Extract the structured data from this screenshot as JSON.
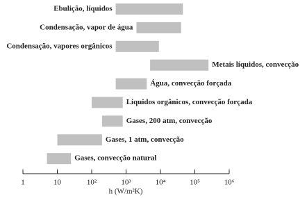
{
  "chart_data": {
    "type": "range-bar",
    "categories": [
      "Ebulição, líquidos",
      "Condensação, vapor de água",
      "Condensação, vapores orgânicos",
      "Metais líquidos, convecção",
      "Água, convecção forçada",
      "Líquidos orgânicos, convecção forçada",
      "Gases, 200 atm, convecção",
      "Gases, 1 atm, convecção",
      "Gases, convecção natural"
    ],
    "low": [
      500,
      2000,
      500,
      5000,
      500,
      100,
      200,
      10,
      5
    ],
    "high": [
      45000,
      40000,
      9000,
      250000,
      4000,
      800,
      800,
      200,
      25
    ],
    "color": "#c0c0c0",
    "xlabel": "h (W/m²K)",
    "log_x": true,
    "xlim": [
      1,
      1000000
    ],
    "xticks": [
      1,
      10,
      {
        "value": 100,
        "label": "10²"
      },
      {
        "value": 1000,
        "label": "10³"
      },
      {
        "value": 10000,
        "label": "10⁴"
      },
      {
        "value": 100000,
        "label": "10⁵"
      },
      {
        "value": 1000000,
        "label": "10⁶"
      }
    ]
  }
}
